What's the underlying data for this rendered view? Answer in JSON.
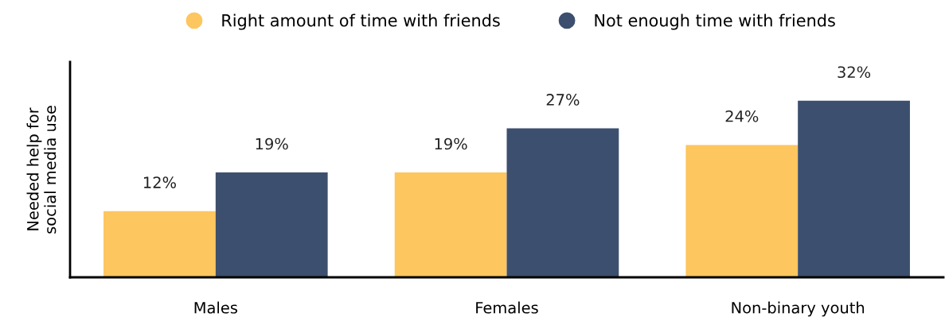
{
  "chart_data": {
    "type": "bar",
    "ylabel": "Needed help for\nsocial media use",
    "categories": [
      "Males",
      "Females",
      "Non-binary youth"
    ],
    "series": [
      {
        "name": "Right amount of time with friends",
        "color": "#fdc65e",
        "values": [
          12,
          19,
          24
        ],
        "value_labels": [
          "12%",
          "19%",
          "24%"
        ]
      },
      {
        "name": "Not enough time with friends",
        "color": "#3d4f6e",
        "values": [
          19,
          27,
          32
        ],
        "value_labels": [
          "19%",
          "27%",
          "32%"
        ]
      }
    ],
    "legend": "top",
    "grid": false,
    "tick_labels": "x"
  }
}
